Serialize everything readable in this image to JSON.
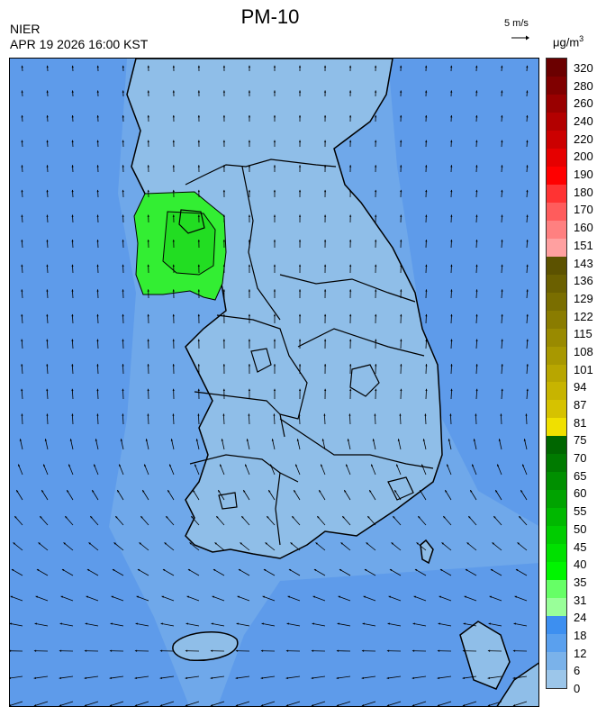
{
  "header": {
    "title": "PM-10",
    "agency": "NIER",
    "datetime": "APR 19 2026 16:00 KST",
    "reference_vector": "5 m/s",
    "unit_base": "μg/m",
    "unit_exp": "3"
  },
  "legend": {
    "labels": [
      "320",
      "280",
      "260",
      "240",
      "220",
      "200",
      "190",
      "180",
      "170",
      "160",
      "151",
      "143",
      "136",
      "129",
      "122",
      "115",
      "108",
      "101",
      "94",
      "87",
      "81",
      "75",
      "70",
      "65",
      "60",
      "55",
      "50",
      "45",
      "40",
      "35",
      "31",
      "24",
      "18",
      "12",
      "6",
      "0"
    ],
    "colors": [
      "#6b0000",
      "#800000",
      "#990000",
      "#b30000",
      "#cc0000",
      "#e60000",
      "#ff0000",
      "#ff3333",
      "#ff5c5c",
      "#ff8080",
      "#ffa0a0",
      "#5c5200",
      "#6b6000",
      "#7a6e00",
      "#8a7c00",
      "#998a00",
      "#a89800",
      "#b8a600",
      "#c7b400",
      "#d6c200",
      "#f0e000",
      "#006600",
      "#007a00",
      "#008f00",
      "#00a300",
      "#00b800",
      "#00cc00",
      "#00e000",
      "#00f500",
      "#66ff66",
      "#99ff99",
      "#3d8ff0",
      "#5aa0ee",
      "#7ab2ea",
      "#9cc6ea"
    ]
  },
  "map": {
    "background_color": "#6fa8ea",
    "sea_far_color": "#5e9bea",
    "land_low_color": "#8fbee8",
    "hotspot_color": "#33ee33",
    "hotspot_core_color": "#22dd22",
    "boundary_color": "#000000",
    "wind_arrow_color": "#000000"
  }
}
